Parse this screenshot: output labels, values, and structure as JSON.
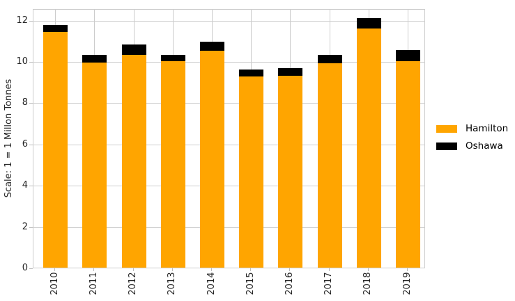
{
  "chart_data": {
    "type": "bar",
    "stacked": true,
    "title": "",
    "xlabel": "",
    "ylabel": "Scale: 1 = 1 Millon Tonnes",
    "categories": [
      "2010",
      "2011",
      "2012",
      "2013",
      "2014",
      "2015",
      "2016",
      "2017",
      "2018",
      "2019"
    ],
    "series": [
      {
        "name": "Hamilton",
        "color": "#FFA500",
        "values": [
          11.4,
          9.95,
          10.3,
          10.0,
          10.5,
          9.25,
          9.3,
          9.9,
          11.6,
          10.0
        ]
      },
      {
        "name": "Oshawa",
        "color": "#000000",
        "values": [
          0.35,
          0.35,
          0.5,
          0.3,
          0.45,
          0.35,
          0.35,
          0.4,
          0.5,
          0.55
        ]
      }
    ],
    "yticks": [
      0,
      2,
      4,
      6,
      8,
      10,
      12
    ],
    "ylim": [
      0,
      12.56
    ],
    "grid": true,
    "legend_position": "right",
    "colors": {
      "grid": "#cccccc",
      "spine": "#cccccc",
      "tick_text": "#262626",
      "background": "#ffffff"
    }
  }
}
